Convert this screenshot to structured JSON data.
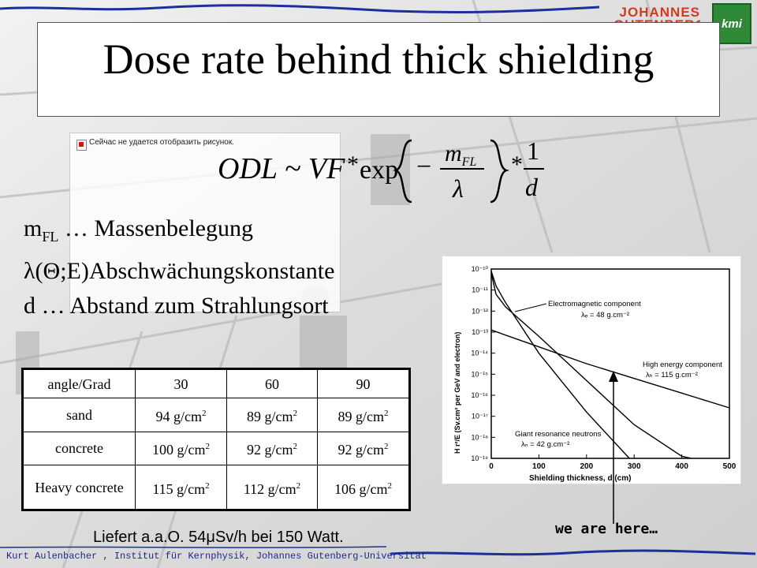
{
  "slide": {
    "title": "Dose rate behind thick shielding",
    "broken_image_text": "Сейчас не удается отобразить рисунок.",
    "logo_text": "JOHANNES GUTENBERG",
    "logo_badge": "kmi"
  },
  "formula": {
    "lhs": "ODL ~ VF",
    "star": "*",
    "exp": "exp",
    "minus": "−",
    "num": "m",
    "num_sub": "FL",
    "den": "λ",
    "one": "1",
    "d": "d"
  },
  "definitions": [
    {
      "symbol": "m",
      "sub": "FL",
      "text": " … Massenbelegung"
    },
    {
      "symbol": "λ",
      "sub": "",
      "text": "(Θ;E)Abschwächungskonstante"
    },
    {
      "symbol": "d",
      "sub": "",
      "text": " … Abstand zum Strahlungsort"
    }
  ],
  "table": {
    "header": [
      "angle/Grad",
      "30",
      "60",
      "90"
    ],
    "rows": [
      {
        "label": "sand",
        "v": [
          "94 g/cm",
          "89 g/cm",
          "89 g/cm"
        ]
      },
      {
        "label": "concrete",
        "v": [
          "100 g/cm",
          "92 g/cm",
          "92 g/cm"
        ]
      },
      {
        "label": "Heavy concrete",
        "v": [
          "115 g/cm",
          "112 g/cm",
          "106 g/cm"
        ]
      }
    ],
    "sup": "2"
  },
  "chart_data": {
    "type": "line",
    "xlabel": "Shielding thickness, d (cm)",
    "ylabel": "H r²/E (Sv.cm² per GeV and electron)",
    "x_ticks": [
      "0",
      "100",
      "200",
      "300",
      "400",
      "500"
    ],
    "xlim": [
      0,
      500
    ],
    "y_ticks": [
      "10⁻¹⁰",
      "10⁻¹¹",
      "10⁻¹²",
      "10⁻¹³",
      "10⁻¹⁴",
      "10⁻¹⁵",
      "10⁻¹⁶",
      "10⁻¹⁷",
      "10⁻¹⁸",
      "10⁻¹⁹"
    ],
    "ylim_exp": [
      -19,
      -10
    ],
    "annotations": [
      {
        "text": "Electromagnetic component",
        "sub": "λₑ = 48 g.cm⁻²"
      },
      {
        "text": "High energy component",
        "sub": "λₕ = 115 g.cm⁻²"
      },
      {
        "text": "Giant resonance neutrons",
        "sub": "λₙ = 42 g.cm⁻²"
      }
    ],
    "series": [
      {
        "x": [
          0,
          10,
          30,
          100,
          200,
          290
        ],
        "log10y": [
          -10.1,
          -10.8,
          -11.6,
          -14.0,
          -16.8,
          -19
        ]
      },
      {
        "x": [
          0,
          10,
          30,
          100,
          200,
          300,
          400,
          420
        ],
        "log10y": [
          -10.2,
          -11.2,
          -11.8,
          -13.2,
          -15.3,
          -17.4,
          -18.9,
          -19
        ]
      },
      {
        "x": [
          0,
          100,
          200,
          300,
          400,
          500
        ],
        "log10y": [
          -12.9,
          -13.7,
          -14.5,
          -15.2,
          -15.9,
          -16.6
        ]
      }
    ]
  },
  "marker_text": "we are here…",
  "note": {
    "prefix": "Liefert a.a.O. 54",
    "mu": "μ",
    "suffix": "Sv/h bei 150 Watt."
  },
  "footer": "Kurt Aulenbacher , Institut für Kernphysik, Johannes Gutenberg-Universität"
}
